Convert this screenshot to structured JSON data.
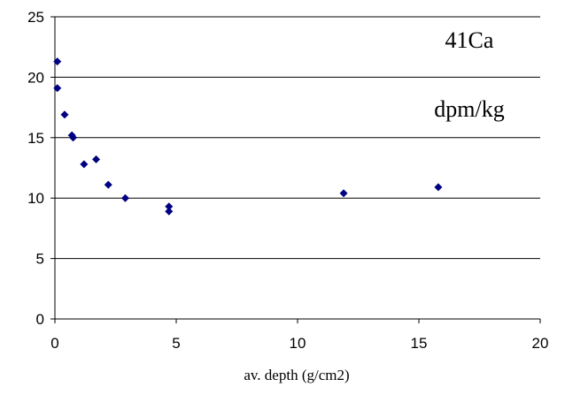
{
  "chart_data": {
    "type": "scatter",
    "title": "",
    "xlabel": "av. depth (g/cm2)",
    "ylabel": "",
    "xlim": [
      0,
      20
    ],
    "ylim": [
      0,
      25
    ],
    "x_ticks": [
      "0",
      "5",
      "10",
      "15",
      "20"
    ],
    "y_ticks": [
      "0",
      "5",
      "10",
      "15",
      "20",
      "25"
    ],
    "grid": "horizontal",
    "marker_color": "#000080",
    "annotations": [
      "41Ca",
      "dpm/kg"
    ],
    "series": [
      {
        "points": [
          {
            "x": 0.1,
            "y": 21.3
          },
          {
            "x": 0.1,
            "y": 19.1
          },
          {
            "x": 0.4,
            "y": 16.9
          },
          {
            "x": 0.7,
            "y": 15.2
          },
          {
            "x": 0.75,
            "y": 15.0
          },
          {
            "x": 1.2,
            "y": 12.8
          },
          {
            "x": 1.7,
            "y": 13.2
          },
          {
            "x": 2.2,
            "y": 11.1
          },
          {
            "x": 2.9,
            "y": 10.0
          },
          {
            "x": 4.7,
            "y": 9.3
          },
          {
            "x": 4.7,
            "y": 8.9
          },
          {
            "x": 11.9,
            "y": 10.4
          },
          {
            "x": 15.8,
            "y": 10.9
          }
        ]
      }
    ]
  }
}
